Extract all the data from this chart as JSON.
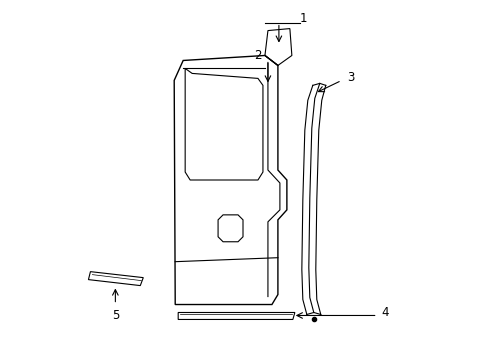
{
  "background_color": "#ffffff",
  "line_color": "#000000",
  "lw": 1.0,
  "tlw": 0.8
}
